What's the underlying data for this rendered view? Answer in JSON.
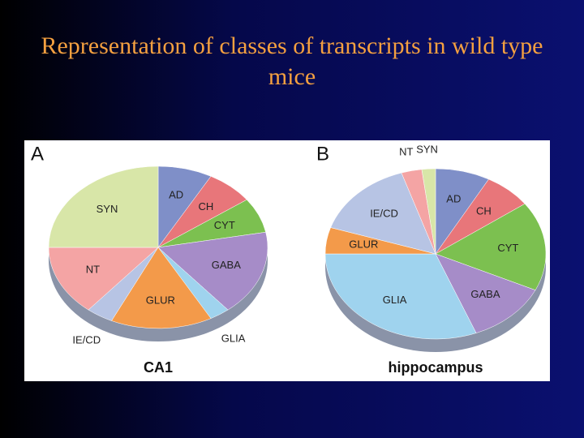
{
  "slide": {
    "title": "Representation of classes of transcripts in wild type mice"
  },
  "chart_data": [
    {
      "type": "pie",
      "panel": "A",
      "subtitle": "CA1",
      "categories": [
        "AD",
        "CH",
        "CYT",
        "GABA",
        "GLIA",
        "GLUR",
        "IE/CD",
        "NT",
        "SYN"
      ],
      "values": [
        8,
        7,
        7,
        17,
        3,
        15,
        4,
        14,
        25
      ],
      "colors": [
        "#7f8fc8",
        "#e8767a",
        "#7cc050",
        "#a68cc8",
        "#9fd3ee",
        "#f39a4a",
        "#b7c4e4",
        "#f4a4a4",
        "#d8e6a8"
      ]
    },
    {
      "type": "pie",
      "panel": "B",
      "subtitle": "hippocampus",
      "categories": [
        "AD",
        "CH",
        "CYT",
        "GABA",
        "GLIA",
        "GLUR",
        "IE/CD",
        "NT",
        "SYN"
      ],
      "values": [
        8,
        7,
        17,
        12,
        31,
        5,
        15,
        3,
        2
      ],
      "colors": [
        "#7f8fc8",
        "#e8767a",
        "#7cc050",
        "#a68cc8",
        "#9fd3ee",
        "#f39a4a",
        "#b7c4e4",
        "#f4a4a4",
        "#d8e6a8"
      ]
    }
  ]
}
